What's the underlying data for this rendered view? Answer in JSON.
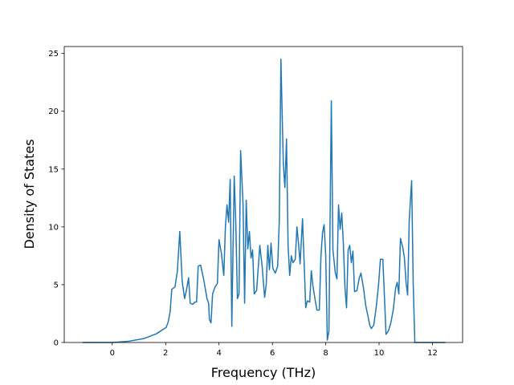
{
  "chart_data": {
    "type": "line",
    "x_label": "Frequency (THz)",
    "y_label": "Density of States",
    "xlim": [
      -1.8,
      13.13
    ],
    "ylim": [
      0,
      25.6
    ],
    "xticks": [
      0,
      2,
      4,
      6,
      8,
      10,
      12
    ],
    "yticks": [
      0,
      5,
      10,
      15,
      20,
      25
    ],
    "grid": false,
    "x": [
      -1.11,
      0,
      0.6,
      1.2,
      1.65,
      2.02,
      2.1,
      2.17,
      2.23,
      2.35,
      2.44,
      2.53,
      2.62,
      2.71,
      2.77,
      2.86,
      2.92,
      3.01,
      3.1,
      3.16,
      3.22,
      3.31,
      3.43,
      3.55,
      3.61,
      3.64,
      3.7,
      3.76,
      3.85,
      3.94,
      4.0,
      4.09,
      4.18,
      4.24,
      4.3,
      4.36,
      4.42,
      4.48,
      4.57,
      4.63,
      4.69,
      4.75,
      4.81,
      4.9,
      4.96,
      5.02,
      5.08,
      5.14,
      5.2,
      5.26,
      5.32,
      5.41,
      5.53,
      5.62,
      5.71,
      5.77,
      5.83,
      5.89,
      5.95,
      6.02,
      6.11,
      6.2,
      6.26,
      6.32,
      6.41,
      6.47,
      6.53,
      6.59,
      6.65,
      6.71,
      6.77,
      6.86,
      6.92,
      6.98,
      7.04,
      7.13,
      7.19,
      7.25,
      7.31,
      7.4,
      7.46,
      7.52,
      7.61,
      7.67,
      7.76,
      7.82,
      7.88,
      7.94,
      8.0,
      8.06,
      8.12,
      8.21,
      8.27,
      8.36,
      8.42,
      8.48,
      8.54,
      8.6,
      8.66,
      8.72,
      8.78,
      8.84,
      8.9,
      8.96,
      9.02,
      9.08,
      9.17,
      9.26,
      9.32,
      9.41,
      9.5,
      9.59,
      9.65,
      9.71,
      9.8,
      9.89,
      9.98,
      10.05,
      10.14,
      10.2,
      10.26,
      10.35,
      10.44,
      10.53,
      10.62,
      10.68,
      10.74,
      10.8,
      10.89,
      10.95,
      11.01,
      11.07,
      11.13,
      11.22,
      11.28,
      11.34,
      11.73,
      12.48
    ],
    "series": [
      {
        "color": "#1f77b4",
        "values": [
          0,
          0,
          0.1,
          0.35,
          0.75,
          1.3,
          1.8,
          2.7,
          4.6,
          4.8,
          6.2,
          9.6,
          5.3,
          3.8,
          4.4,
          5.6,
          3.4,
          3.3,
          3.5,
          3.5,
          6.6,
          6.7,
          5.4,
          3.8,
          3.4,
          2.0,
          1.7,
          4.2,
          4.8,
          5.1,
          8.9,
          7.7,
          5.8,
          10.0,
          11.9,
          10.4,
          14.1,
          1.4,
          14.4,
          10.3,
          3.8,
          4.2,
          16.6,
          12.0,
          3.4,
          12.3,
          8.1,
          9.6,
          7.3,
          8.0,
          4.2,
          4.5,
          8.4,
          6.5,
          3.9,
          5.0,
          8.4,
          6.3,
          8.6,
          6.4,
          6.0,
          6.6,
          10.6,
          24.5,
          15.5,
          13.4,
          17.6,
          8.3,
          5.8,
          7.5,
          6.9,
          7.2,
          10.0,
          8.6,
          6.8,
          10.7,
          7.0,
          3.0,
          3.6,
          3.5,
          6.2,
          4.9,
          3.6,
          2.8,
          2.8,
          7.4,
          9.5,
          10.2,
          7.5,
          0.2,
          1.0,
          20.9,
          8.0,
          6.0,
          5.5,
          11.9,
          9.8,
          11.2,
          8.6,
          4.8,
          3.0,
          8.0,
          8.4,
          6.9,
          7.9,
          4.4,
          4.5,
          5.6,
          6.0,
          4.8,
          3.2,
          2.2,
          1.5,
          1.2,
          1.5,
          3.0,
          5.0,
          7.2,
          7.2,
          4.0,
          0.7,
          1.0,
          1.7,
          2.8,
          4.7,
          5.2,
          4.2,
          9.0,
          8.2,
          7.3,
          5.2,
          4.1,
          10.6,
          14.0,
          5.0,
          0,
          0,
          0
        ]
      }
    ]
  }
}
